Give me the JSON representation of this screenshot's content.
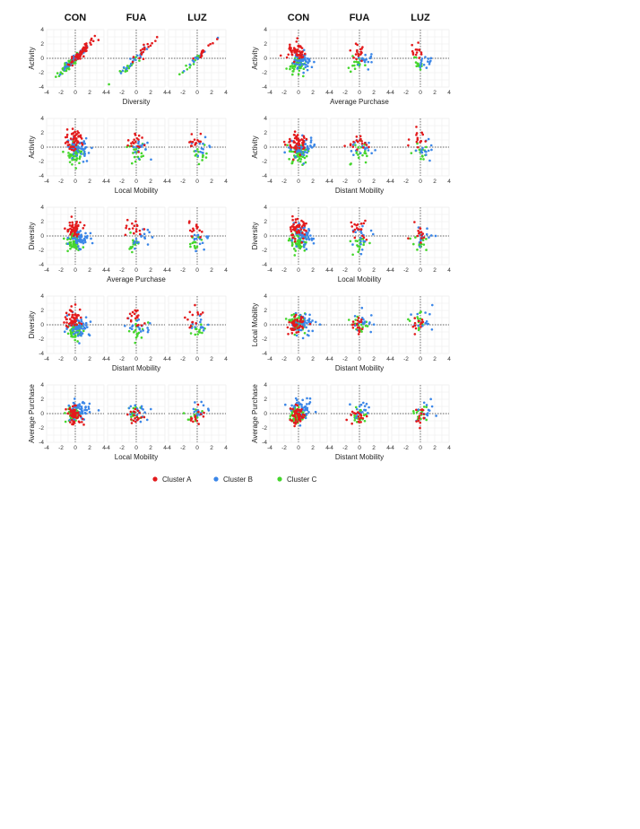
{
  "region_labels": [
    "CON",
    "FUA",
    "LUZ"
  ],
  "axis_ticks": [
    "-4",
    "-2",
    "0",
    "2",
    "4"
  ],
  "chart_data": {
    "type": "scatter",
    "grid": true,
    "xlim": [
      -4,
      4
    ],
    "ylim": [
      -4,
      4
    ],
    "xticks": [
      -4,
      -2,
      0,
      2,
      4
    ],
    "yticks": [
      -4,
      -2,
      0,
      2,
      4
    ],
    "legend": {
      "placement": "bottom-center",
      "entries": [
        {
          "label": "Cluster A",
          "color": "#e31a1c"
        },
        {
          "label": "Cluster B",
          "color": "#3a86e8"
        },
        {
          "label": "Cluster C",
          "color": "#44d62c"
        }
      ]
    },
    "panels": [
      {
        "ylabel": "Activity",
        "xlabel": "Diversity",
        "pattern": "pos"
      },
      {
        "ylabel": "Activity",
        "xlabel": "Average Purchase",
        "pattern": "purch"
      },
      {
        "ylabel": "Activity",
        "xlabel": "Local Mobility",
        "pattern": "blob"
      },
      {
        "ylabel": "Activity",
        "xlabel": "Distant Mobility",
        "pattern": "blob"
      },
      {
        "ylabel": "Diversity",
        "xlabel": "Average Purchase",
        "pattern": "purch"
      },
      {
        "ylabel": "Diversity",
        "xlabel": "Local Mobility",
        "pattern": "blob"
      },
      {
        "ylabel": "Diversity",
        "xlabel": "Distant Mobility",
        "pattern": "blob"
      },
      {
        "ylabel": "Local Mobility",
        "xlabel": "Distant Mobility",
        "pattern": "mob"
      },
      {
        "ylabel": "Average Purchase",
        "xlabel": "Local Mobility",
        "pattern": "purchy"
      },
      {
        "ylabel": "Average Purchase",
        "xlabel": "Distant Mobility",
        "pattern": "purchy"
      }
    ],
    "cluster_centers": {
      "pos": {
        "A": [
          1.0,
          1.0,
          0.45
        ],
        "B": [
          0.0,
          0.0,
          0.35
        ],
        "C": [
          -0.9,
          -0.9,
          0.45
        ]
      },
      "purch": {
        "A": [
          -0.3,
          0.9,
          0.6
        ],
        "B": [
          0.6,
          -0.3,
          0.6
        ],
        "C": [
          -0.3,
          -0.9,
          0.6
        ]
      },
      "blob": {
        "A": [
          -0.2,
          0.9,
          0.7
        ],
        "B": [
          0.5,
          -0.2,
          0.7
        ],
        "C": [
          0.1,
          -0.9,
          0.7
        ]
      },
      "mob": {
        "A": [
          -0.3,
          -0.1,
          0.6
        ],
        "B": [
          0.6,
          0.1,
          0.8
        ],
        "C": [
          -0.1,
          0.3,
          0.6
        ]
      },
      "purchy": {
        "A": [
          -0.1,
          -0.3,
          0.6
        ],
        "B": [
          0.5,
          0.4,
          0.7
        ],
        "C": [
          -0.2,
          -0.1,
          0.6
        ]
      }
    },
    "points_per_cluster": [
      55,
      18,
      14
    ]
  }
}
